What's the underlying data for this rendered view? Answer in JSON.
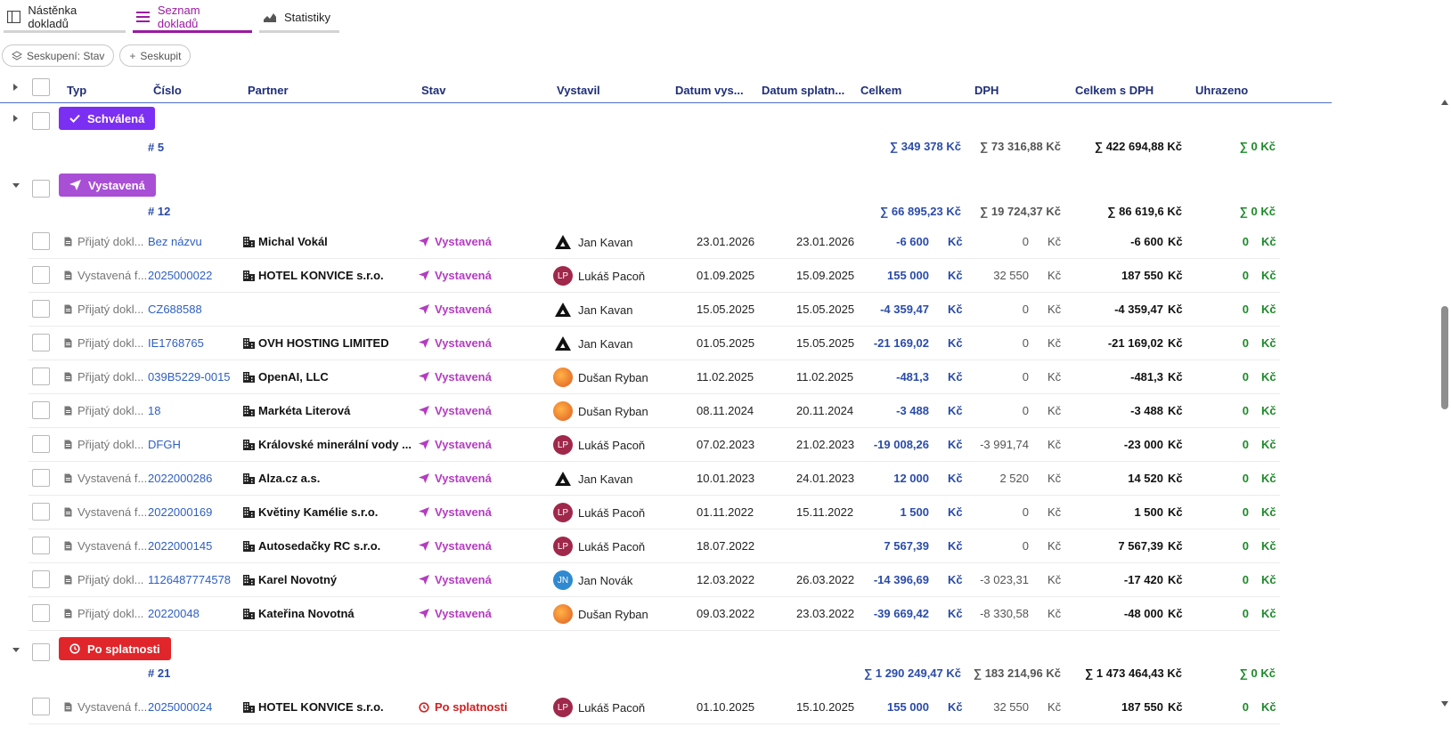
{
  "tabs": [
    {
      "label": "Nástěnka dokladů",
      "icon": "board-icon"
    },
    {
      "label": "Seznam dokladů",
      "icon": "list-icon"
    },
    {
      "label": "Statistiky",
      "icon": "area-chart-icon"
    }
  ],
  "chips": {
    "grouping_label": "Seskupení: Stav",
    "add_group_label": "Seskupit"
  },
  "columns": {
    "type": "Typ",
    "number": "Číslo",
    "partner": "Partner",
    "state": "Stav",
    "issuer": "Vystavil",
    "issue_date": "Datum vys...",
    "due_date": "Datum splatn...",
    "total": "Celkem",
    "vat": "DPH",
    "total_vat": "Celkem s DPH",
    "paid": "Uhrazeno"
  },
  "currency": "Kč",
  "colors": {
    "approved": "#7b2ff2",
    "issued": "#a84fd6",
    "overdue": "#e0262a",
    "accent": "#9a1aa0"
  },
  "groups": {
    "approved": {
      "label": "Schválená",
      "count": "# 5",
      "sum_total": "∑ 349 378 Kč",
      "sum_vat": "∑ 73 316,88 Kč",
      "sum_total_vat": "∑ 422 694,88 Kč",
      "sum_paid": "∑ 0 Kč"
    },
    "issued": {
      "label": "Vystavená",
      "count": "# 12",
      "sum_total": "∑ 66 895,23 Kč",
      "sum_vat": "∑ 19 724,37 Kč",
      "sum_total_vat": "∑ 86 619,6 Kč",
      "sum_paid": "∑ 0 Kč"
    },
    "overdue": {
      "label": "Po splatnosti",
      "count": "# 21",
      "sum_total": "∑ 1 290 249,47 Kč",
      "sum_vat": "∑ 183 214,96 Kč",
      "sum_total_vat": "∑ 1 473 464,43 Kč",
      "sum_paid": "∑ 0 Kč"
    }
  },
  "issued_rows": [
    {
      "type": "Přijatý dokl...",
      "number": "Bez názvu",
      "partner": "Michal Vokál",
      "state": "Vystavená",
      "issuer": "Jan Kavan",
      "avatar": "logo",
      "issue_date": "23.01.2026",
      "due_date": "23.01.2026",
      "total": "-6 600",
      "vat": "0",
      "total_vat": "-6 600",
      "paid": "0"
    },
    {
      "type": "Vystavená f...",
      "number": "2025000022",
      "partner": "HOTEL KONVICE s.r.o.",
      "state": "Vystavená",
      "issuer": "Lukáš Pacoň",
      "avatar": "LP",
      "issue_date": "01.09.2025",
      "due_date": "15.09.2025",
      "total": "155 000",
      "vat": "32 550",
      "total_vat": "187 550",
      "paid": "0"
    },
    {
      "type": "Přijatý dokl...",
      "number": "CZ688588",
      "partner": "",
      "state": "Vystavená",
      "issuer": "Jan Kavan",
      "avatar": "logo",
      "issue_date": "15.05.2025",
      "due_date": "15.05.2025",
      "total": "-4 359,47",
      "vat": "0",
      "total_vat": "-4 359,47",
      "paid": "0"
    },
    {
      "type": "Přijatý dokl...",
      "number": "IE1768765",
      "partner": "OVH HOSTING LIMITED",
      "state": "Vystavená",
      "issuer": "Jan Kavan",
      "avatar": "logo",
      "issue_date": "01.05.2025",
      "due_date": "15.05.2025",
      "total": "-21 169,02",
      "vat": "0",
      "total_vat": "-21 169,02",
      "paid": "0"
    },
    {
      "type": "Přijatý dokl...",
      "number": "039B5229-0015",
      "partner": "OpenAI, LLC",
      "state": "Vystavená",
      "issuer": "Dušan Ryban",
      "avatar": "photo",
      "issue_date": "11.02.2025",
      "due_date": "11.02.2025",
      "total": "-481,3",
      "vat": "0",
      "total_vat": "-481,3",
      "paid": "0"
    },
    {
      "type": "Přijatý dokl...",
      "number": "18",
      "partner": "Markéta Literová",
      "state": "Vystavená",
      "issuer": "Dušan Ryban",
      "avatar": "photo",
      "issue_date": "08.11.2024",
      "due_date": "20.11.2024",
      "total": "-3 488",
      "vat": "0",
      "total_vat": "-3 488",
      "paid": "0"
    },
    {
      "type": "Přijatý dokl...",
      "number": "DFGH",
      "partner": "Královské minerální vody ...",
      "state": "Vystavená",
      "issuer": "Lukáš Pacoň",
      "avatar": "LP",
      "issue_date": "07.02.2023",
      "due_date": "21.02.2023",
      "total": "-19 008,26",
      "vat": "-3 991,74",
      "total_vat": "-23 000",
      "paid": "0"
    },
    {
      "type": "Vystavená f...",
      "number": "2022000286",
      "partner": "Alza.cz a.s.",
      "state": "Vystavená",
      "issuer": "Jan Kavan",
      "avatar": "logo",
      "issue_date": "10.01.2023",
      "due_date": "24.01.2023",
      "total": "12 000",
      "vat": "2 520",
      "total_vat": "14 520",
      "paid": "0"
    },
    {
      "type": "Vystavená f...",
      "number": "2022000169",
      "partner": "Květiny Kamélie s.r.o.",
      "state": "Vystavená",
      "issuer": "Lukáš Pacoň",
      "avatar": "LP",
      "issue_date": "01.11.2022",
      "due_date": "15.11.2022",
      "total": "1 500",
      "vat": "0",
      "total_vat": "1 500",
      "paid": "0"
    },
    {
      "type": "Vystavená f...",
      "number": "2022000145",
      "partner": "Autosedačky RC s.r.o.",
      "state": "Vystavená",
      "issuer": "Lukáš Pacoň",
      "avatar": "LP",
      "issue_date": "18.07.2022",
      "due_date": "",
      "total": "7 567,39",
      "vat": "0",
      "total_vat": "7 567,39",
      "paid": "0"
    },
    {
      "type": "Přijatý dokl...",
      "number": "1126487774578",
      "partner": "Karel Novotný",
      "state": "Vystavená",
      "issuer": "Jan Novák",
      "avatar": "JN",
      "issue_date": "12.03.2022",
      "due_date": "26.03.2022",
      "total": "-14 396,69",
      "vat": "-3 023,31",
      "total_vat": "-17 420",
      "paid": "0"
    },
    {
      "type": "Přijatý dokl...",
      "number": "20220048",
      "partner": "Kateřina Novotná",
      "state": "Vystavená",
      "issuer": "Dušan Ryban",
      "avatar": "photo",
      "issue_date": "09.03.2022",
      "due_date": "23.03.2022",
      "total": "-39 669,42",
      "vat": "-8 330,58",
      "total_vat": "-48 000",
      "paid": "0"
    }
  ],
  "overdue_rows": [
    {
      "type": "Vystavená f...",
      "number": "2025000024",
      "partner": "HOTEL KONVICE s.r.o.",
      "state": "Po splatnosti",
      "issuer": "Lukáš Pacoň",
      "avatar": "LP",
      "issue_date": "01.10.2025",
      "due_date": "15.10.2025",
      "total": "155 000",
      "vat": "32 550",
      "total_vat": "187 550",
      "paid": "0"
    }
  ]
}
